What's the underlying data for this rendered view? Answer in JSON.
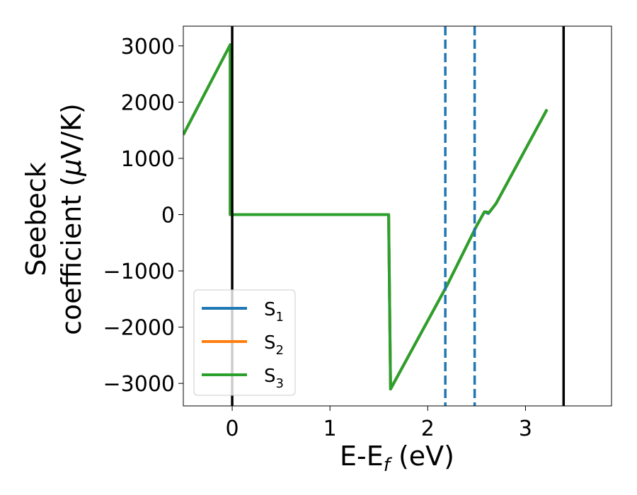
{
  "chart_data": {
    "type": "line",
    "xlabel": "E-E",
    "xlabel_sub": "f",
    "xlabel_unit": " (eV)",
    "ylabel_line1": "Seebeck",
    "ylabel_line2_pre": "coefficient  (",
    "ylabel_mu": "μ",
    "ylabel_line2_post": "V/K)",
    "xlim": [
      -0.5,
      3.88
    ],
    "ylim": [
      -3400,
      3350
    ],
    "x_ticks": [
      0,
      1,
      2,
      3
    ],
    "y_ticks": [
      -3000,
      -2000,
      -1000,
      0,
      1000,
      2000,
      3000
    ],
    "grid": false,
    "legend": {
      "placement": "lower-left",
      "entries": [
        {
          "label": "S",
          "sub": "1",
          "color": "#1f77b4"
        },
        {
          "label": "S",
          "sub": "2",
          "color": "#ff7f0e"
        },
        {
          "label": "S",
          "sub": "3",
          "color": "#2ca02c"
        }
      ]
    },
    "series": [
      {
        "name": "S1",
        "color": "#1f77b4",
        "x": [
          -0.5,
          -0.02,
          -0.02,
          0.0,
          1.6,
          1.6,
          1.62,
          2.2,
          2.5,
          2.58,
          2.62,
          2.7,
          3.22
        ],
        "y": [
          1420,
          3020,
          0,
          0,
          0,
          0,
          -3100,
          -1250,
          -200,
          50,
          20,
          200,
          1870
        ]
      },
      {
        "name": "S2",
        "color": "#ff7f0e",
        "x": [
          -0.5,
          -0.02,
          -0.02,
          0.0,
          1.6,
          1.6,
          1.62,
          2.2,
          2.5,
          2.58,
          2.63,
          2.7,
          3.22
        ],
        "y": [
          1420,
          3020,
          0,
          0,
          0,
          0,
          -3100,
          -1250,
          -200,
          50,
          40,
          200,
          1870
        ]
      },
      {
        "name": "S3",
        "color": "#2ca02c",
        "x": [
          -0.5,
          -0.02,
          -0.02,
          0.0,
          1.6,
          1.6,
          1.62,
          2.2,
          2.5,
          2.58,
          2.63,
          2.7,
          3.22
        ],
        "y": [
          1420,
          3020,
          0,
          0,
          0,
          0,
          -3100,
          -1250,
          -200,
          50,
          40,
          200,
          1870
        ]
      }
    ],
    "vlines": [
      {
        "x": 0.0,
        "color": "#000000",
        "style": "solid"
      },
      {
        "x": 3.39,
        "color": "#000000",
        "style": "solid"
      },
      {
        "x": 2.18,
        "color": "#1f77b4",
        "style": "dashed"
      },
      {
        "x": 2.48,
        "color": "#1f77b4",
        "style": "dashed"
      }
    ]
  }
}
